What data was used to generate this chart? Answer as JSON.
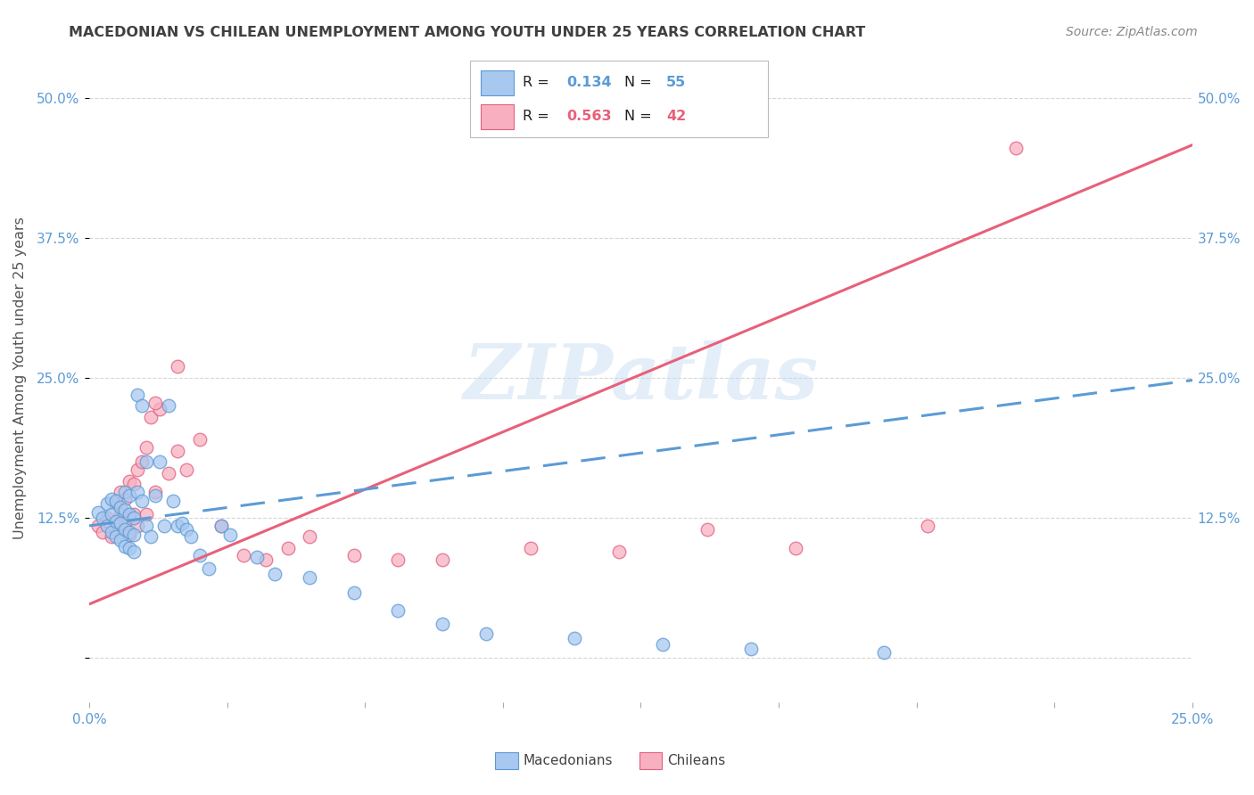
{
  "title": "MACEDONIAN VS CHILEAN UNEMPLOYMENT AMONG YOUTH UNDER 25 YEARS CORRELATION CHART",
  "source": "Source: ZipAtlas.com",
  "ylabel": "Unemployment Among Youth under 25 years",
  "xlim": [
    0.0,
    0.25
  ],
  "ylim": [
    -0.04,
    0.54
  ],
  "yticks": [
    0.0,
    0.125,
    0.25,
    0.375,
    0.5
  ],
  "ytick_labels_left": [
    "",
    "12.5%",
    "25.0%",
    "37.5%",
    "50.0%"
  ],
  "ytick_labels_right": [
    "",
    "12.5%",
    "25.0%",
    "37.5%",
    "50.0%"
  ],
  "xtick_vals": [
    0.0,
    0.03125,
    0.0625,
    0.09375,
    0.125,
    0.15625,
    0.1875,
    0.21875,
    0.25
  ],
  "xtick_labels": [
    "0.0%",
    "",
    "",
    "",
    "",
    "",
    "",
    "",
    "25.0%"
  ],
  "watermark": "ZIPatlas",
  "mac_label": "Macedonians",
  "chil_label": "Chileans",
  "mac_R": "0.134",
  "mac_N": "55",
  "chil_R": "0.563",
  "chil_N": "42",
  "mac_face": "#A8C8F0",
  "mac_edge": "#5B9BD5",
  "chil_face": "#F8B0C0",
  "chil_edge": "#E06080",
  "mac_line": "#5B9BD5",
  "chil_line": "#E8607A",
  "grid_color": "#CCCCCC",
  "mac_scatter_x": [
    0.002,
    0.003,
    0.004,
    0.004,
    0.005,
    0.005,
    0.005,
    0.006,
    0.006,
    0.006,
    0.007,
    0.007,
    0.007,
    0.008,
    0.008,
    0.008,
    0.008,
    0.009,
    0.009,
    0.009,
    0.009,
    0.01,
    0.01,
    0.01,
    0.011,
    0.011,
    0.012,
    0.012,
    0.013,
    0.013,
    0.014,
    0.015,
    0.016,
    0.017,
    0.018,
    0.019,
    0.02,
    0.021,
    0.022,
    0.023,
    0.025,
    0.027,
    0.03,
    0.032,
    0.038,
    0.042,
    0.05,
    0.06,
    0.07,
    0.08,
    0.09,
    0.11,
    0.13,
    0.15,
    0.18
  ],
  "mac_scatter_y": [
    0.13,
    0.125,
    0.118,
    0.138,
    0.112,
    0.128,
    0.142,
    0.108,
    0.122,
    0.14,
    0.105,
    0.12,
    0.135,
    0.1,
    0.115,
    0.132,
    0.148,
    0.098,
    0.112,
    0.128,
    0.145,
    0.095,
    0.11,
    0.125,
    0.235,
    0.148,
    0.225,
    0.14,
    0.175,
    0.118,
    0.108,
    0.145,
    0.175,
    0.118,
    0.225,
    0.14,
    0.118,
    0.12,
    0.115,
    0.108,
    0.092,
    0.08,
    0.118,
    0.11,
    0.09,
    0.075,
    0.072,
    0.058,
    0.042,
    0.03,
    0.022,
    0.018,
    0.012,
    0.008,
    0.005
  ],
  "chil_scatter_x": [
    0.002,
    0.003,
    0.004,
    0.005,
    0.006,
    0.006,
    0.007,
    0.007,
    0.008,
    0.008,
    0.009,
    0.009,
    0.01,
    0.01,
    0.011,
    0.011,
    0.012,
    0.013,
    0.013,
    0.014,
    0.015,
    0.016,
    0.018,
    0.02,
    0.022,
    0.025,
    0.03,
    0.035,
    0.04,
    0.045,
    0.06,
    0.08,
    0.1,
    0.12,
    0.14,
    0.16,
    0.19,
    0.21,
    0.02,
    0.015,
    0.07,
    0.05
  ],
  "chil_scatter_y": [
    0.118,
    0.112,
    0.125,
    0.108,
    0.138,
    0.115,
    0.128,
    0.148,
    0.12,
    0.142,
    0.11,
    0.158,
    0.128,
    0.155,
    0.118,
    0.168,
    0.175,
    0.188,
    0.128,
    0.215,
    0.148,
    0.222,
    0.165,
    0.185,
    0.168,
    0.195,
    0.118,
    0.092,
    0.088,
    0.098,
    0.092,
    0.088,
    0.098,
    0.095,
    0.115,
    0.098,
    0.118,
    0.455,
    0.26,
    0.228,
    0.088,
    0.108
  ],
  "mac_reg": [
    0.0,
    0.25,
    0.118,
    0.248
  ],
  "chil_reg": [
    0.0,
    0.25,
    0.048,
    0.458
  ]
}
